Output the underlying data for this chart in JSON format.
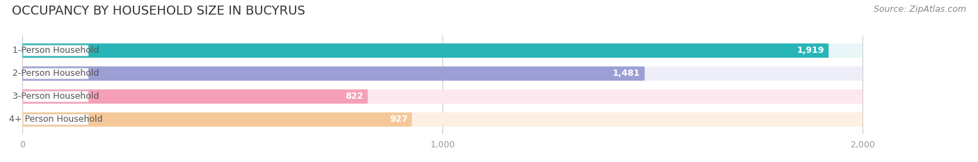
{
  "title": "OCCUPANCY BY HOUSEHOLD SIZE IN BUCYRUS",
  "source": "Source: ZipAtlas.com",
  "categories": [
    "1-Person Household",
    "2-Person Household",
    "3-Person Household",
    "4+ Person Household"
  ],
  "values": [
    1919,
    1481,
    822,
    927
  ],
  "bar_colors": [
    "#29b4b6",
    "#9b9fd4",
    "#f5a0b8",
    "#f5c89a"
  ],
  "bar_bg_colors": [
    "#e8f6f7",
    "#eeeeF8",
    "#fce8ee",
    "#fdf0e2"
  ],
  "value_labels": [
    "1,919",
    "1,481",
    "822",
    "927"
  ],
  "xlim": [
    0,
    2000
  ],
  "xticks": [
    0,
    1000,
    2000
  ],
  "xtick_labels": [
    "0",
    "1,000",
    "2,000"
  ],
  "title_fontsize": 13,
  "source_fontsize": 9,
  "label_fontsize": 9,
  "value_fontsize": 9,
  "tick_fontsize": 9,
  "background_color": "#ffffff"
}
